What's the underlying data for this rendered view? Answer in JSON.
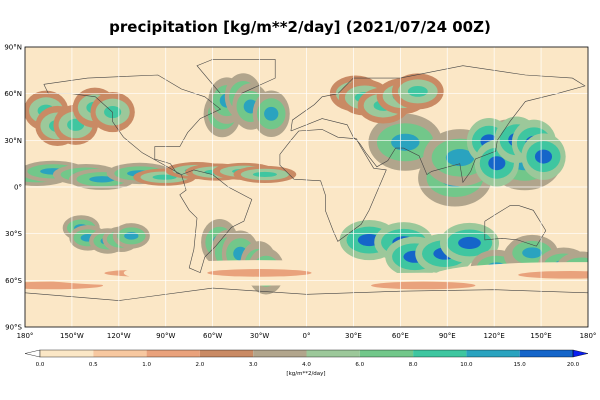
{
  "title": "precipitation [kg/m**2/day] (2021/07/24 00Z)",
  "map": {
    "lat_ticks": [
      "90°N",
      "60°N",
      "30°N",
      "0°",
      "30°S",
      "60°S",
      "90°S"
    ],
    "lat_values": [
      90,
      60,
      30,
      0,
      -30,
      -60,
      -90
    ],
    "lon_ticks": [
      "180°",
      "150°W",
      "120°W",
      "90°W",
      "60°W",
      "30°W",
      "0°",
      "30°E",
      "60°E",
      "90°E",
      "120°E",
      "150°E",
      "180°"
    ],
    "lon_values": [
      -180,
      -150,
      -120,
      -90,
      -60,
      -30,
      0,
      30,
      60,
      90,
      120,
      150,
      180
    ],
    "grid": true
  },
  "colorbar": {
    "unit_label": "[kg/m**2/day]",
    "levels": [
      "0.0",
      "0.5",
      "1.0",
      "2.0",
      "3.0",
      "4.0",
      "6.0",
      "8.0",
      "10.0",
      "15.0",
      "20.0"
    ],
    "colors": [
      "#ffffff",
      "#fbe7c6",
      "#f7c8a0",
      "#e9a27c",
      "#c98a64",
      "#b1a58c",
      "#9cc89a",
      "#72c78a",
      "#3fc6a0",
      "#2aa3bf",
      "#1565c9",
      "#0a1ff0"
    ]
  },
  "precip_bands": [
    {
      "lon": [
        -180,
        -100
      ],
      "lat": [
        4,
        12
      ],
      "level": 9
    },
    {
      "lon": [
        -95,
        -20
      ],
      "lat": [
        5,
        11
      ],
      "level": 8
    },
    {
      "lon": [
        60,
        150
      ],
      "lat": [
        5,
        30
      ],
      "level": 9
    },
    {
      "lon": [
        110,
        160
      ],
      "lat": [
        15,
        35
      ],
      "level": 10
    },
    {
      "lon": [
        -170,
        -120
      ],
      "lat": [
        38,
        55
      ],
      "level": 8
    },
    {
      "lon": [
        -60,
        -20
      ],
      "lat": [
        40,
        60
      ],
      "level": 9
    },
    {
      "lon": [
        20,
        80
      ],
      "lat": [
        50,
        65
      ],
      "level": 8
    },
    {
      "lon": [
        -150,
        -110
      ],
      "lat": [
        -35,
        -25
      ],
      "level": 9
    },
    {
      "lon": [
        -60,
        -20
      ],
      "lat": [
        -55,
        -35
      ],
      "level": 9
    },
    {
      "lon": [
        40,
        110
      ],
      "lat": [
        -45,
        -28
      ],
      "level": 10
    },
    {
      "lon": [
        120,
        180
      ],
      "lat": [
        -55,
        -40
      ],
      "level": 9
    },
    {
      "lon": [
        -180,
        180
      ],
      "lat": [
        -65,
        -55
      ],
      "level": 3
    }
  ]
}
